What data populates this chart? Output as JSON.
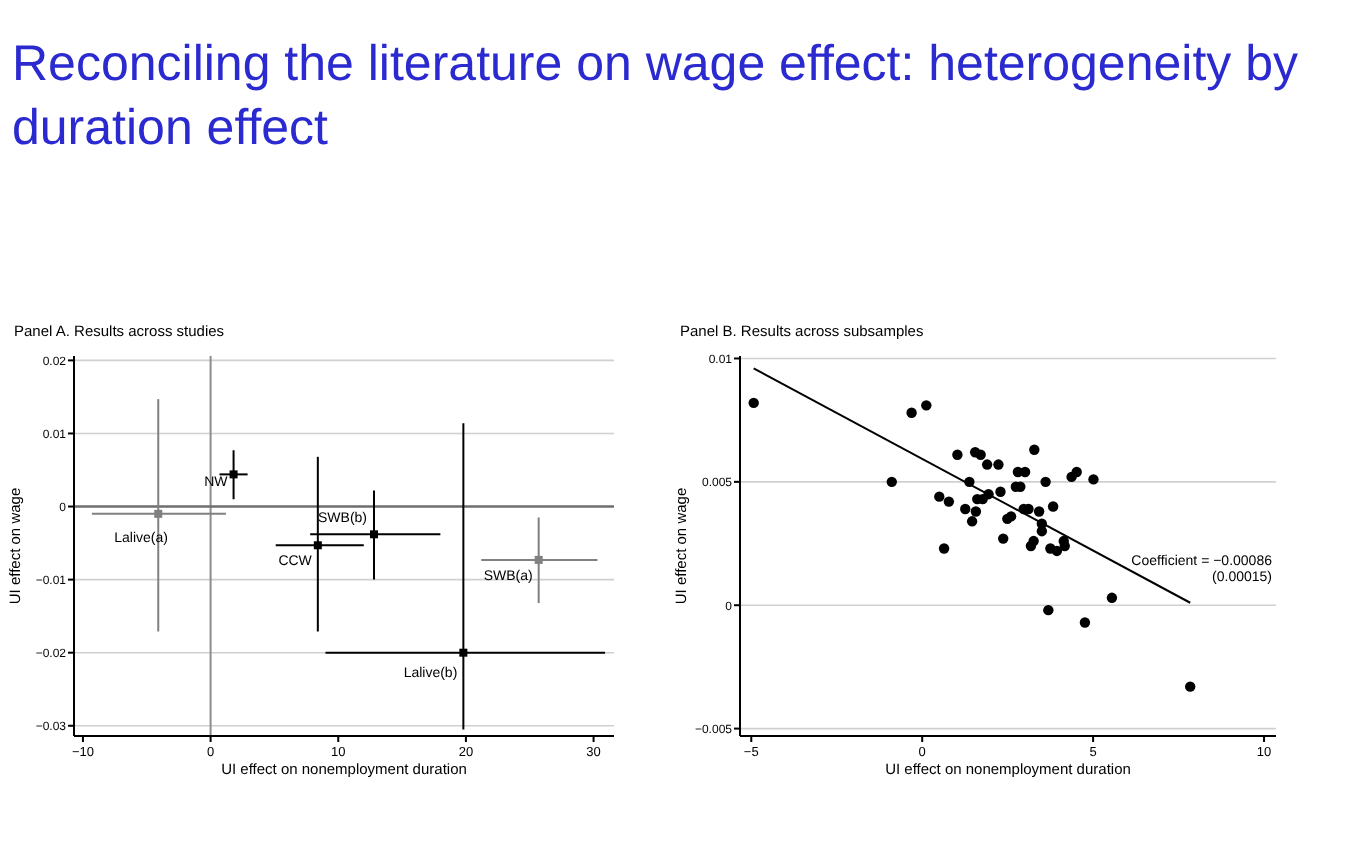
{
  "chart_data": [
    {
      "type": "scatter",
      "title": "Reconciling the literature on wage effect: heterogeneity by duration effect",
      "subtitle": "Panel A. Results across studies",
      "xlabel": "UI effect on nonemployment duration",
      "ylabel": "UI effect on wage",
      "x": [
        -4.1,
        1.8,
        8.4,
        12.8,
        25.7,
        19.8
      ],
      "values": [
        -0.001,
        0.0044,
        -0.0053,
        -0.0038,
        -0.0073,
        -0.02
      ],
      "xerrors": [
        [
          -9.3,
          1.2
        ],
        [
          0.7,
          2.9
        ],
        [
          5.1,
          12.0
        ],
        [
          7.8,
          18.0
        ],
        [
          21.2,
          30.3
        ],
        [
          9.0,
          30.9
        ]
      ],
      "errors": [
        [
          -0.0171,
          0.0147
        ],
        [
          0.001,
          0.0077
        ],
        [
          -0.0171,
          0.0068
        ],
        [
          -0.01,
          0.0022
        ],
        [
          -0.0132,
          -0.0015
        ],
        [
          -0.0305,
          0.0114
        ]
      ],
      "colors": [
        "#808080",
        "#000000",
        "#000000",
        "#000000",
        "#808080",
        "#000000"
      ],
      "annotations": [
        {
          "text": "Lalive(a)",
          "x": -4.1,
          "y": -0.001
        },
        {
          "text": "NW",
          "x": 1.8,
          "y": 0.0044
        },
        {
          "text": "CCW",
          "x": 8.4,
          "y": -0.0053
        },
        {
          "text": "SWB(b)",
          "x": 12.8,
          "y": -0.0038
        },
        {
          "text": "SWB(a)",
          "x": 25.7,
          "y": -0.0073
        },
        {
          "text": "Lalive(b)",
          "x": 19.8,
          "y": -0.02
        }
      ],
      "ref_lines": [
        {
          "axis": "x",
          "value": 0,
          "color": "#8c8c8c"
        },
        {
          "axis": "y",
          "value": 0,
          "color": "#6e6e6e"
        }
      ],
      "marker": "square",
      "grid": "y",
      "xlim": [
        -10.7,
        31.6
      ],
      "ylim": [
        -0.0314,
        0.0206
      ],
      "xticks": [
        {
          "value": -10,
          "label": "−10"
        },
        0,
        10,
        20,
        30
      ],
      "yticks": [
        {
          "value": -0.03,
          "label": "−0.03"
        },
        {
          "value": -0.02,
          "label": "−0.02"
        },
        {
          "value": -0.01,
          "label": "−0.01"
        },
        0,
        0.01,
        0.02
      ]
    },
    {
      "type": "scatter",
      "title": "Panel B. Results across subsamples",
      "xlabel": "UI effect on nonemployment duration",
      "ylabel": "UI effect on wage",
      "series": [
        {
          "marker": "circle",
          "color": "#000000",
          "x": [
            -4.93,
            -0.31,
            0.12,
            -0.89,
            0.5,
            0.78,
            0.64,
            1.03,
            1.26,
            1.38,
            1.55,
            1.71,
            1.9,
            2.23,
            1.61,
            1.77,
            1.94,
            1.46,
            1.57,
            2.29,
            2.37,
            2.49,
            2.6,
            2.74,
            2.87,
            2.8,
            3.01,
            2.97,
            3.11,
            3.18,
            3.26,
            3.28,
            3.42,
            3.5,
            3.5,
            3.61,
            3.75,
            3.83,
            3.94,
            4.14,
            4.17,
            4.37,
            4.52,
            5.01,
            3.69,
            4.76,
            5.55,
            7.84
          ],
          "values": [
            0.0082,
            0.0078,
            0.0081,
            0.005,
            0.0044,
            0.0042,
            0.0023,
            0.0061,
            0.0039,
            0.005,
            0.0062,
            0.0061,
            0.0057,
            0.0057,
            0.0043,
            0.0043,
            0.0045,
            0.0034,
            0.0038,
            0.0046,
            0.0027,
            0.0035,
            0.0036,
            0.0048,
            0.0048,
            0.0054,
            0.0054,
            0.0039,
            0.0039,
            0.0024,
            0.0026,
            0.0063,
            0.0038,
            0.0033,
            0.003,
            0.005,
            0.0023,
            0.004,
            0.0022,
            0.0026,
            0.0024,
            0.0052,
            0.0054,
            0.0051,
            -0.0002,
            -0.0007,
            0.0003,
            -0.0033
          ]
        },
        {
          "type": "line",
          "marker": "none",
          "color": "#000000",
          "x": [
            -4.93,
            7.84
          ],
          "values": [
            0.0096,
            0.0001
          ]
        }
      ],
      "annotations": [
        "Coefficient = −0.00086\n(0.00015)"
      ],
      "grid": "y",
      "xlim": [
        -5.33,
        10.35
      ],
      "ylim": [
        -0.0053,
        0.0101
      ],
      "xticks": [
        {
          "value": -5,
          "label": "−5"
        },
        0,
        5,
        10
      ],
      "yticks": [
        {
          "value": -0.005,
          "label": "−0.005"
        },
        0,
        0.005,
        0.01
      ]
    }
  ]
}
